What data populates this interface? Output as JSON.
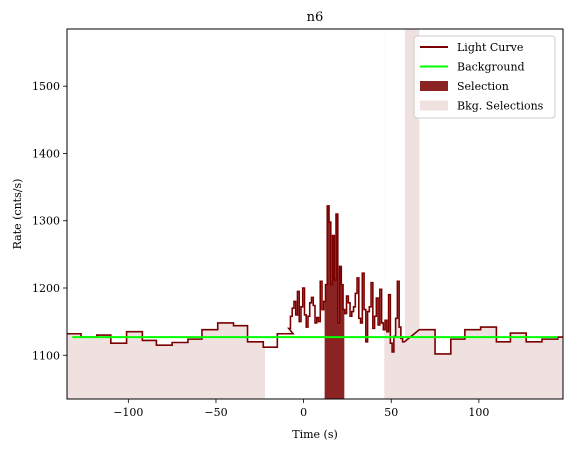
{
  "chart_data": {
    "type": "line",
    "title": "n6",
    "xlabel": "Time (s)",
    "ylabel": "Rate (cnts/s)",
    "xlim": [
      -135,
      148
    ],
    "ylim": [
      1035,
      1585
    ],
    "xticks": [
      -100,
      -50,
      0,
      50,
      100
    ],
    "xtick_labels": [
      "−100",
      "−50",
      "0",
      "50",
      "100"
    ],
    "yticks": [
      1100,
      1200,
      1300,
      1400,
      1500
    ],
    "ytick_labels": [
      "1100",
      "1200",
      "1300",
      "1400",
      "1500"
    ],
    "legend_position": "top-right",
    "colors": {
      "light_curve": "#7a0000",
      "background": "#00ff00",
      "selection": "#8b2323",
      "bkg_selection": "#f0e1e1"
    },
    "legend": [
      {
        "label": "Light Curve",
        "kind": "line",
        "color": "#7a0000"
      },
      {
        "label": "Background",
        "kind": "line",
        "color": "#00ff00"
      },
      {
        "label": "Selection",
        "kind": "patch",
        "color": "#8b2323"
      },
      {
        "label": "Bkg. Selections",
        "kind": "patch",
        "color": "#f0e1e1"
      }
    ],
    "background_line": {
      "x": [
        -132,
        145
      ],
      "y": [
        1127,
        1127
      ]
    },
    "selection": {
      "x0": 12,
      "x1": 23
    },
    "bkg_selections": [
      {
        "x0": -135,
        "x1": -22
      },
      {
        "x0": 46,
        "x1": 148
      }
    ],
    "light_curve_coarse": {
      "edges": [
        -135,
        -127,
        -118,
        -110,
        -101,
        -92,
        -84,
        -75,
        -66,
        -58,
        -49,
        -40,
        -32,
        -23,
        -15,
        -6
      ],
      "values": [
        1132,
        1127,
        1130,
        1118,
        1135,
        1122,
        1115,
        1119,
        1124,
        1138,
        1148,
        1144,
        1120,
        1112,
        1132
      ]
    },
    "light_curve_fine": {
      "start": -8.5,
      "step": 1,
      "values": [
        1140,
        1158,
        1170,
        1180,
        1160,
        1195,
        1150,
        1172,
        1200,
        1160,
        1142,
        1158,
        1178,
        1186,
        1174,
        1148,
        1156,
        1150,
        1210,
        1168,
        1180,
        1205,
        1322,
        1298,
        1205,
        1278,
        1212,
        1310,
        1148,
        1232,
        1205,
        1168,
        1162,
        1188,
        1178,
        1158,
        1165,
        1172,
        1192,
        1215,
        1155,
        1148,
        1222,
        1168,
        1120,
        1165,
        1172,
        1208,
        1140,
        1158,
        1185,
        1145,
        1198,
        1148,
        1138,
        1152,
        1135,
        1190,
        1118,
        1105,
        1128,
        1155,
        1210,
        1142,
        1125,
        1120
      ]
    },
    "light_curve_tail": {
      "edges": [
        66,
        75,
        84,
        92,
        101,
        110,
        118,
        127,
        136,
        145,
        148
      ],
      "values": [
        1138,
        1102,
        1124,
        1138,
        1142,
        1120,
        1133,
        1120,
        1124,
        1127
      ]
    }
  }
}
